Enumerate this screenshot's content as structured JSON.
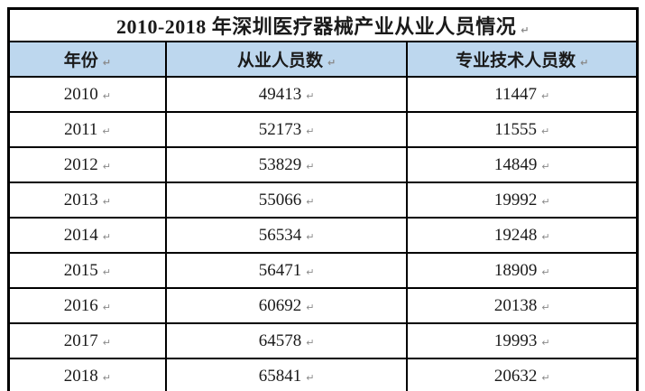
{
  "title": "2010-2018 年深圳医疗器械产业从业人员情况",
  "marks": {
    "paragraph": "↵"
  },
  "table": {
    "columns": [
      {
        "key": "year",
        "label": "年份"
      },
      {
        "key": "employees",
        "label": "从业人员数"
      },
      {
        "key": "technical",
        "label": "专业技术人员数"
      }
    ],
    "rows": [
      {
        "year": "2010",
        "employees": "49413",
        "technical": "11447"
      },
      {
        "year": "2011",
        "employees": "52173",
        "technical": "11555"
      },
      {
        "year": "2012",
        "employees": "53829",
        "technical": "14849"
      },
      {
        "year": "2013",
        "employees": "55066",
        "technical": "19992"
      },
      {
        "year": "2014",
        "employees": "56534",
        "technical": "19248"
      },
      {
        "year": "2015",
        "employees": "56471",
        "technical": "18909"
      },
      {
        "year": "2016",
        "employees": "60692",
        "technical": "20138"
      },
      {
        "year": "2017",
        "employees": "64578",
        "technical": "19993"
      },
      {
        "year": "2018",
        "employees": "65841",
        "technical": "20632"
      }
    ]
  },
  "colors": {
    "header_bg": "#BDD7EE",
    "border": "#000000",
    "text": "#1A1A1A",
    "paragraph_mark": "#8A8A8A"
  },
  "chart_data": {
    "type": "table",
    "title": "2010-2018 年深圳医疗器械产业从业人员情况",
    "categories": [
      "2010",
      "2011",
      "2012",
      "2013",
      "2014",
      "2015",
      "2016",
      "2017",
      "2018"
    ],
    "series": [
      {
        "name": "从业人员数",
        "values": [
          49413,
          52173,
          53829,
          55066,
          56534,
          56471,
          60692,
          64578,
          65841
        ]
      },
      {
        "name": "专业技术人员数",
        "values": [
          11447,
          11555,
          14849,
          19992,
          19248,
          18909,
          20138,
          19993,
          20632
        ]
      }
    ]
  }
}
